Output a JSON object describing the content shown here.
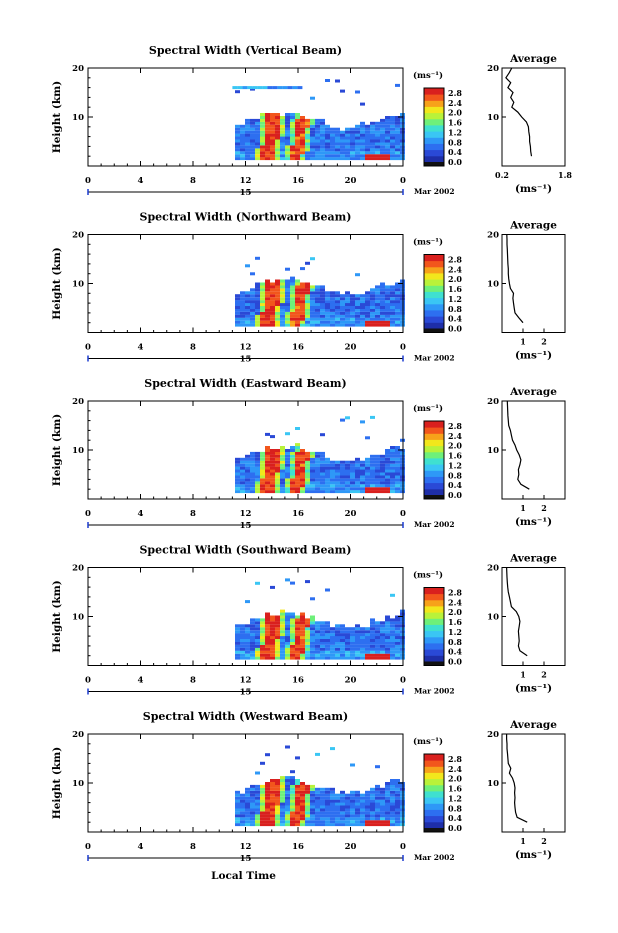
{
  "xaxis": {
    "ticks": [
      "0",
      "4",
      "8",
      "12",
      "16",
      "20",
      "0"
    ],
    "day_label": "15",
    "month_label": "Mar 2002",
    "label": "Local Time"
  },
  "yaxis": {
    "label": "Height (km)",
    "ticks": [
      "10",
      "20"
    ]
  },
  "colorbar": {
    "unit_label": "(ms⁻¹)",
    "ticks": [
      "0.0",
      "0.4",
      "0.8",
      "1.2",
      "1.6",
      "2.0",
      "2.4",
      "2.8"
    ],
    "colors": [
      "#1e2ea8",
      "#2a49d6",
      "#2d6ff0",
      "#2e98f7",
      "#3ac6f4",
      "#3fe0d0",
      "#6ef07a",
      "#b9f23a",
      "#f2e71c",
      "#f7a21a",
      "#f2561c",
      "#d9201e"
    ]
  },
  "chart_data": [
    {
      "type": "heatmap",
      "title": "Spectral Width (Vertical Beam)",
      "x_range": [
        0,
        24
      ],
      "y_range": [
        0,
        20
      ],
      "profile": {
        "title": "Average",
        "xlabel": "(ms⁻¹)",
        "xticks": [
          "0.2",
          "1.8"
        ],
        "xlim": [
          0.2,
          1.8
        ],
        "heights": [
          2,
          3,
          4,
          5,
          6,
          7,
          8,
          9,
          10,
          11,
          12,
          13,
          14,
          15,
          16,
          17,
          18,
          19,
          20
        ],
        "values": [
          0.95,
          0.93,
          0.92,
          0.9,
          0.9,
          0.88,
          0.87,
          0.82,
          0.7,
          0.6,
          0.45,
          0.5,
          0.42,
          0.48,
          0.35,
          0.42,
          0.3,
          0.38,
          0.45
        ]
      }
    },
    {
      "type": "heatmap",
      "title": "Spectral Width (Northward Beam)",
      "x_range": [
        0,
        24
      ],
      "y_range": [
        0,
        20
      ],
      "profile": {
        "title": "Average",
        "xlabel": "(ms⁻¹)",
        "xticks": [
          "1",
          "2"
        ],
        "xlim": [
          0,
          3
        ],
        "heights": [
          2,
          3,
          4,
          5,
          6,
          7,
          8,
          9,
          10,
          11,
          12,
          13,
          14,
          15,
          16,
          17,
          18,
          19,
          20
        ],
        "values": [
          1.0,
          0.8,
          0.62,
          0.58,
          0.55,
          0.52,
          0.55,
          0.4,
          0.35,
          0.32,
          0.3,
          0.3,
          0.28,
          0.27,
          0.26,
          0.25,
          0.24,
          0.24,
          0.23
        ]
      }
    },
    {
      "type": "heatmap",
      "title": "Spectral Width (Eastward Beam)",
      "x_range": [
        0,
        24
      ],
      "y_range": [
        0,
        20
      ],
      "profile": {
        "title": "Average",
        "xlabel": "(ms⁻¹)",
        "xticks": [
          "1",
          "2"
        ],
        "xlim": [
          0,
          3
        ],
        "heights": [
          2,
          3,
          4,
          5,
          6,
          7,
          8,
          9,
          10,
          11,
          12,
          13,
          14,
          15,
          16,
          17,
          18,
          19,
          20
        ],
        "values": [
          1.3,
          0.9,
          0.75,
          0.8,
          0.78,
          0.85,
          0.9,
          0.82,
          0.7,
          0.62,
          0.5,
          0.45,
          0.4,
          0.32,
          0.3,
          0.28,
          0.27,
          0.26,
          0.25
        ]
      }
    },
    {
      "type": "heatmap",
      "title": "Spectral Width (Southward Beam)",
      "x_range": [
        0,
        24
      ],
      "y_range": [
        0,
        20
      ],
      "profile": {
        "title": "Average",
        "xlabel": "(ms⁻¹)",
        "xticks": [
          "1",
          "2"
        ],
        "xlim": [
          0,
          3
        ],
        "heights": [
          2,
          3,
          4,
          5,
          6,
          7,
          8,
          9,
          10,
          11,
          12,
          13,
          14,
          15,
          16,
          17,
          18,
          19,
          20
        ],
        "values": [
          1.2,
          0.85,
          0.78,
          0.82,
          0.8,
          0.78,
          0.82,
          0.85,
          0.8,
          0.68,
          0.45,
          0.4,
          0.35,
          0.3,
          0.27,
          0.25,
          0.24,
          0.23,
          0.22
        ]
      }
    },
    {
      "type": "heatmap",
      "title": "Spectral Width (Westward Beam)",
      "x_range": [
        0,
        24
      ],
      "y_range": [
        0,
        20
      ],
      "profile": {
        "title": "Average",
        "xlabel": "(ms⁻¹)",
        "xticks": [
          "1",
          "2"
        ],
        "xlim": [
          0,
          3
        ],
        "heights": [
          2,
          3,
          4,
          5,
          6,
          7,
          8,
          9,
          10,
          11,
          12,
          13,
          14,
          15,
          16,
          17,
          18,
          19,
          20
        ],
        "values": [
          1.2,
          0.72,
          0.65,
          0.62,
          0.6,
          0.62,
          0.6,
          0.62,
          0.58,
          0.5,
          0.35,
          0.42,
          0.3,
          0.28,
          0.26,
          0.24,
          0.24,
          0.22,
          0.22
        ]
      }
    }
  ]
}
